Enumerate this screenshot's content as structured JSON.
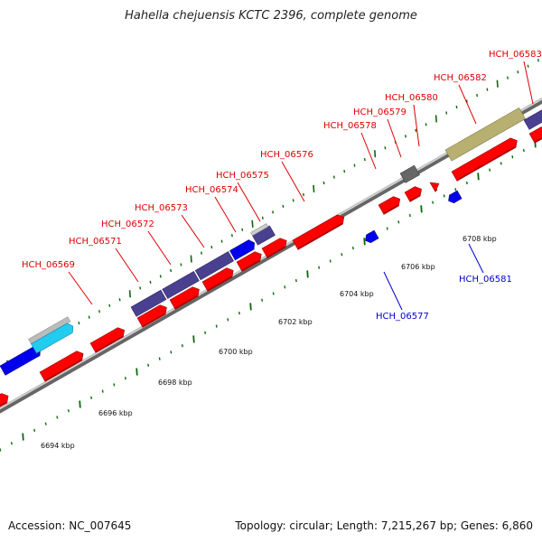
{
  "title": "Hahella chejuensis KCTC 2396, complete genome",
  "footer": {
    "accession": "Accession: NC_007645",
    "summary": "Topology: circular; Length: 7,215,267 bp; Genes: 6,860"
  },
  "colors": {
    "red_gene": "#ff0000",
    "navy_gene": "#4a4090",
    "blue_gene": "#0000ee",
    "cyan_gene": "#22ccee",
    "olive_gene": "#b8b070",
    "gray_gene": "#666666",
    "light_gray_gene": "#bbbbbb",
    "backbone": "#888888",
    "tick_green": "#006600",
    "label_red": "#dd0000",
    "label_blue": "#0000cc"
  },
  "ticks": [
    {
      "label": "6694 kbp"
    },
    {
      "label": "6696 kbp"
    },
    {
      "label": "6698 kbp"
    },
    {
      "label": "6700 kbp"
    },
    {
      "label": "6702 kbp"
    },
    {
      "label": "6704 kbp"
    },
    {
      "label": "6706 kbp"
    },
    {
      "label": "6708 kbp"
    }
  ],
  "gene_labels": [
    {
      "name": "HCH_06569",
      "strand": "forward"
    },
    {
      "name": "HCH_06571",
      "strand": "forward"
    },
    {
      "name": "HCH_06572",
      "strand": "forward"
    },
    {
      "name": "HCH_06573",
      "strand": "forward"
    },
    {
      "name": "HCH_06574",
      "strand": "forward"
    },
    {
      "name": "HCH_06575",
      "strand": "forward"
    },
    {
      "name": "HCH_06576",
      "strand": "forward"
    },
    {
      "name": "HCH_06578",
      "strand": "forward"
    },
    {
      "name": "HCH_06579",
      "strand": "forward"
    },
    {
      "name": "HCH_06580",
      "strand": "forward"
    },
    {
      "name": "HCH_06582",
      "strand": "forward"
    },
    {
      "name": "HCH_06583",
      "strand": "forward"
    },
    {
      "name": "HCH_06577",
      "strand": "reverse"
    },
    {
      "name": "HCH_06581",
      "strand": "reverse"
    }
  ]
}
